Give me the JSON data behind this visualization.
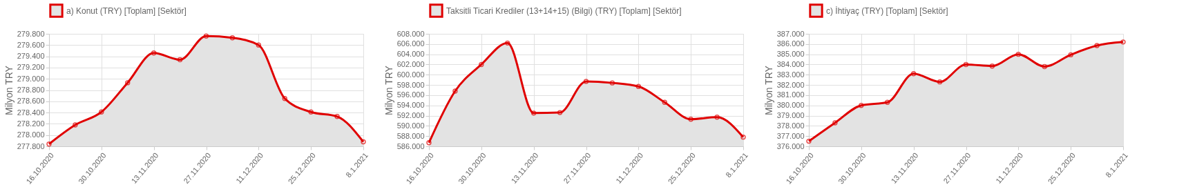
{
  "chart_data": [
    {
      "type": "area",
      "categories": [
        "16.10.2020",
        null,
        "30.10.2020",
        null,
        "13.11.2020",
        null,
        "27.11.2020",
        null,
        "11.12.2020",
        null,
        "25.12.2020",
        null,
        "8.1.2021"
      ],
      "ylabel": "Milyon TRY",
      "legend": "top",
      "grid": true,
      "marker": "circle",
      "line_style": "solid",
      "series": [
        {
          "name": "a) Konut (TRY) [Toplam] [Sektör]",
          "color": "#e00000",
          "values": [
            277840,
            278180,
            278410,
            278930,
            279460,
            279340,
            279760,
            279730,
            279600,
            278650,
            278410,
            278330,
            277880
          ]
        }
      ],
      "ylim": [
        277800,
        279800
      ],
      "yticks": [
        {
          "value": 277800,
          "label": "277.800"
        },
        {
          "value": 278000,
          "label": "278.000"
        },
        {
          "value": 278200,
          "label": "278.200"
        },
        {
          "value": 278400,
          "label": "278.400"
        },
        {
          "value": 278600,
          "label": "278.600"
        },
        {
          "value": 278800,
          "label": "278.800"
        },
        {
          "value": 279000,
          "label": "279.000"
        },
        {
          "value": 279200,
          "label": "279.200"
        },
        {
          "value": 279400,
          "label": "279.400"
        },
        {
          "value": 279600,
          "label": "279.600"
        },
        {
          "value": 279800,
          "label": "279.800"
        }
      ]
    },
    {
      "type": "area",
      "categories": [
        "16.10.2020",
        null,
        "30.10.2020",
        null,
        "13.11.2020",
        null,
        "27.11.2020",
        null,
        "11.12.2020",
        null,
        "25.12.2020",
        null,
        "8.1.2021"
      ],
      "ylabel": "Milyon TRY",
      "legend": "top",
      "grid": true,
      "marker": "circle",
      "line_style": "solid",
      "series": [
        {
          "name": "Taksitli Ticari Krediler (13+14+15) (Bilgi) (TRY) [Toplam] [Sektör]",
          "color": "#e00000",
          "values": [
            586700,
            596800,
            602000,
            606200,
            592500,
            592600,
            598700,
            598400,
            597700,
            594600,
            591300,
            591700,
            587800
          ]
        }
      ],
      "ylim": [
        586000,
        608000
      ],
      "yticks": [
        {
          "value": 586000,
          "label": "586.000"
        },
        {
          "value": 588000,
          "label": "588.000"
        },
        {
          "value": 590000,
          "label": "590.000"
        },
        {
          "value": 592000,
          "label": "592.000"
        },
        {
          "value": 594000,
          "label": "594.000"
        },
        {
          "value": 596000,
          "label": "596.000"
        },
        {
          "value": 598000,
          "label": "598.000"
        },
        {
          "value": 600000,
          "label": "600.000"
        },
        {
          "value": 602000,
          "label": "602.000"
        },
        {
          "value": 604000,
          "label": "604.000"
        },
        {
          "value": 606000,
          "label": "606.000"
        },
        {
          "value": 608000,
          "label": "608.000"
        }
      ]
    },
    {
      "type": "area",
      "categories": [
        "16.10.2020",
        null,
        "30.10.2020",
        null,
        "13.11.2020",
        null,
        "27.11.2020",
        null,
        "11.12.2020",
        null,
        "25.12.2020",
        null,
        "8.1.2021"
      ],
      "ylabel": "Milyon TRY",
      "legend": "top",
      "grid": true,
      "marker": "circle",
      "line_style": "solid",
      "series": [
        {
          "name": "c) İhtiyaç (TRY) [Toplam] [Sektör]",
          "color": "#e00000",
          "values": [
            376500,
            378300,
            380000,
            380300,
            383100,
            382300,
            384000,
            383850,
            385000,
            383800,
            384950,
            385850,
            386200
          ]
        }
      ],
      "ylim": [
        376000,
        387000
      ],
      "yticks": [
        {
          "value": 376000,
          "label": "376.000"
        },
        {
          "value": 377000,
          "label": "377.000"
        },
        {
          "value": 378000,
          "label": "378.000"
        },
        {
          "value": 379000,
          "label": "379.000"
        },
        {
          "value": 380000,
          "label": "380.000"
        },
        {
          "value": 381000,
          "label": "381.000"
        },
        {
          "value": 382000,
          "label": "382.000"
        },
        {
          "value": 383000,
          "label": "383.000"
        },
        {
          "value": 384000,
          "label": "384.000"
        },
        {
          "value": 385000,
          "label": "385.000"
        },
        {
          "value": 386000,
          "label": "386.000"
        },
        {
          "value": 387000,
          "label": "387.000"
        }
      ]
    }
  ]
}
